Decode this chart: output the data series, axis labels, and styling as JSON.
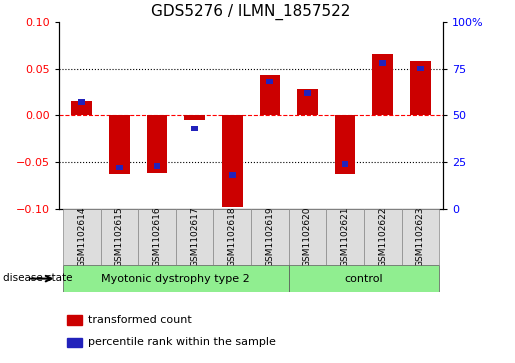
{
  "title": "GDS5276 / ILMN_1857522",
  "samples": [
    "GSM1102614",
    "GSM1102615",
    "GSM1102616",
    "GSM1102617",
    "GSM1102618",
    "GSM1102619",
    "GSM1102620",
    "GSM1102621",
    "GSM1102622",
    "GSM1102623"
  ],
  "red_values": [
    0.015,
    -0.063,
    -0.062,
    -0.005,
    -0.098,
    0.043,
    0.028,
    -0.063,
    0.065,
    0.058
  ],
  "blue_values_pct": [
    57,
    22,
    23,
    43,
    18,
    68,
    62,
    24,
    78,
    75
  ],
  "ylim_left": [
    -0.1,
    0.1
  ],
  "ylim_right": [
    0,
    100
  ],
  "yticks_left": [
    -0.1,
    -0.05,
    0,
    0.05,
    0.1
  ],
  "yticks_right": [
    0,
    25,
    50,
    75,
    100
  ],
  "groups": [
    {
      "label": "Myotonic dystrophy type 2",
      "start": 0,
      "end": 6,
      "color": "#90EE90"
    },
    {
      "label": "control",
      "start": 6,
      "end": 10,
      "color": "#90EE90"
    }
  ],
  "disease_label": "disease state",
  "legend": [
    {
      "label": "transformed count",
      "color": "#CC0000"
    },
    {
      "label": "percentile rank within the sample",
      "color": "#2222BB"
    }
  ],
  "bar_width": 0.55,
  "blue_bar_width": 0.18,
  "blue_bar_height": 0.006,
  "red_color": "#CC0000",
  "blue_color": "#2222BB",
  "background_color": "#FFFFFF",
  "tick_label_fontsize": 8,
  "title_fontsize": 11
}
